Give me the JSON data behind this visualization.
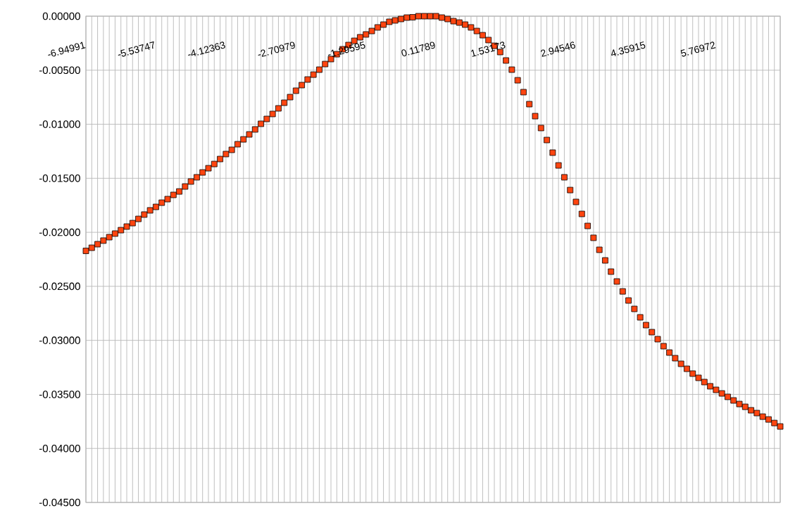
{
  "chart_data": {
    "type": "scatter",
    "marker": "square",
    "color": "#ff4510",
    "grid": true,
    "categories": [
      "-6.94991",
      null,
      null,
      null,
      null,
      null,
      null,
      null,
      null,
      null,
      null,
      null,
      "-5.53747",
      null,
      null,
      null,
      null,
      null,
      null,
      null,
      null,
      null,
      null,
      null,
      "-4.12363",
      null,
      null,
      null,
      null,
      null,
      null,
      null,
      null,
      null,
      null,
      null,
      "-2.70979",
      null,
      null,
      null,
      null,
      null,
      null,
      null,
      null,
      null,
      null,
      null,
      "-1.29595",
      null,
      null,
      null,
      null,
      null,
      null,
      null,
      null,
      null,
      null,
      null,
      "0.11789",
      null,
      null,
      null,
      null,
      null,
      null,
      null,
      null,
      null,
      null,
      null,
      "1.53173",
      null,
      null,
      null,
      null,
      null,
      null,
      null,
      null,
      null,
      null,
      null,
      "2.94546",
      null,
      null,
      null,
      null,
      null,
      null,
      null,
      null,
      null,
      null,
      null,
      "4.35915",
      null,
      null,
      null,
      null,
      null,
      null,
      null,
      null,
      null,
      null,
      null,
      "5.76972",
      null,
      null,
      null,
      null,
      null,
      null,
      null,
      null,
      null,
      null,
      null
    ],
    "values": [
      -0.02172,
      -0.02143,
      -0.0211,
      -0.02077,
      -0.02045,
      -0.02012,
      -0.0198,
      -0.01947,
      -0.01915,
      -0.01876,
      -0.01836,
      -0.01797,
      -0.01765,
      -0.01726,
      -0.01693,
      -0.01654,
      -0.01622,
      -0.01576,
      -0.0153,
      -0.01491,
      -0.01446,
      -0.01407,
      -0.01368,
      -0.01322,
      -0.01276,
      -0.01237,
      -0.01185,
      -0.0114,
      -0.01094,
      -0.01048,
      -0.00996,
      -0.00951,
      -0.00905,
      -0.00853,
      -0.00801,
      -0.00749,
      -0.0069,
      -0.00638,
      -0.00586,
      -0.00541,
      -0.00495,
      -0.00443,
      -0.00397,
      -0.00352,
      -0.00306,
      -0.00267,
      -0.00228,
      -0.00195,
      -0.00169,
      -0.00137,
      -0.00104,
      -0.00078,
      -0.00052,
      -0.00039,
      -0.00026,
      -0.00013,
      -0.0001,
      0,
      0,
      0,
      0,
      -0.00013,
      -0.00026,
      -0.00046,
      -0.00059,
      -0.00078,
      -0.00104,
      -0.00137,
      -0.00176,
      -0.00221,
      -0.00274,
      -0.00332,
      -0.0041,
      -0.00495,
      -0.00593,
      -0.00703,
      -0.00814,
      -0.00925,
      -0.01035,
      -0.01146,
      -0.01263,
      -0.01381,
      -0.01491,
      -0.01609,
      -0.01719,
      -0.0183,
      -0.01941,
      -0.02051,
      -0.02162,
      -0.0226,
      -0.02364,
      -0.02455,
      -0.02547,
      -0.02631,
      -0.02709,
      -0.02787,
      -0.02859,
      -0.02924,
      -0.02989,
      -0.03054,
      -0.03113,
      -0.03165,
      -0.03217,
      -0.03263,
      -0.03308,
      -0.03347,
      -0.03386,
      -0.03425,
      -0.03458,
      -0.03491,
      -0.03523,
      -0.03556,
      -0.03589,
      -0.03615,
      -0.03647,
      -0.03673,
      -0.03706,
      -0.03732,
      -0.03765,
      -0.03797
    ],
    "ylim": [
      -0.045,
      0
    ],
    "yticks": [
      {
        "value": 0,
        "label": "0.00000"
      },
      {
        "value": -0.005,
        "label": "-0.00500"
      },
      {
        "value": -0.01,
        "label": "-0.01000"
      },
      {
        "value": -0.015,
        "label": "-0.01500"
      },
      {
        "value": -0.02,
        "label": "-0.02000"
      },
      {
        "value": -0.025,
        "label": "-0.02500"
      },
      {
        "value": -0.03,
        "label": "-0.03000"
      },
      {
        "value": -0.035,
        "label": "-0.03500"
      },
      {
        "value": -0.04,
        "label": "-0.04000"
      },
      {
        "value": -0.045,
        "label": "-0.04500"
      }
    ]
  }
}
